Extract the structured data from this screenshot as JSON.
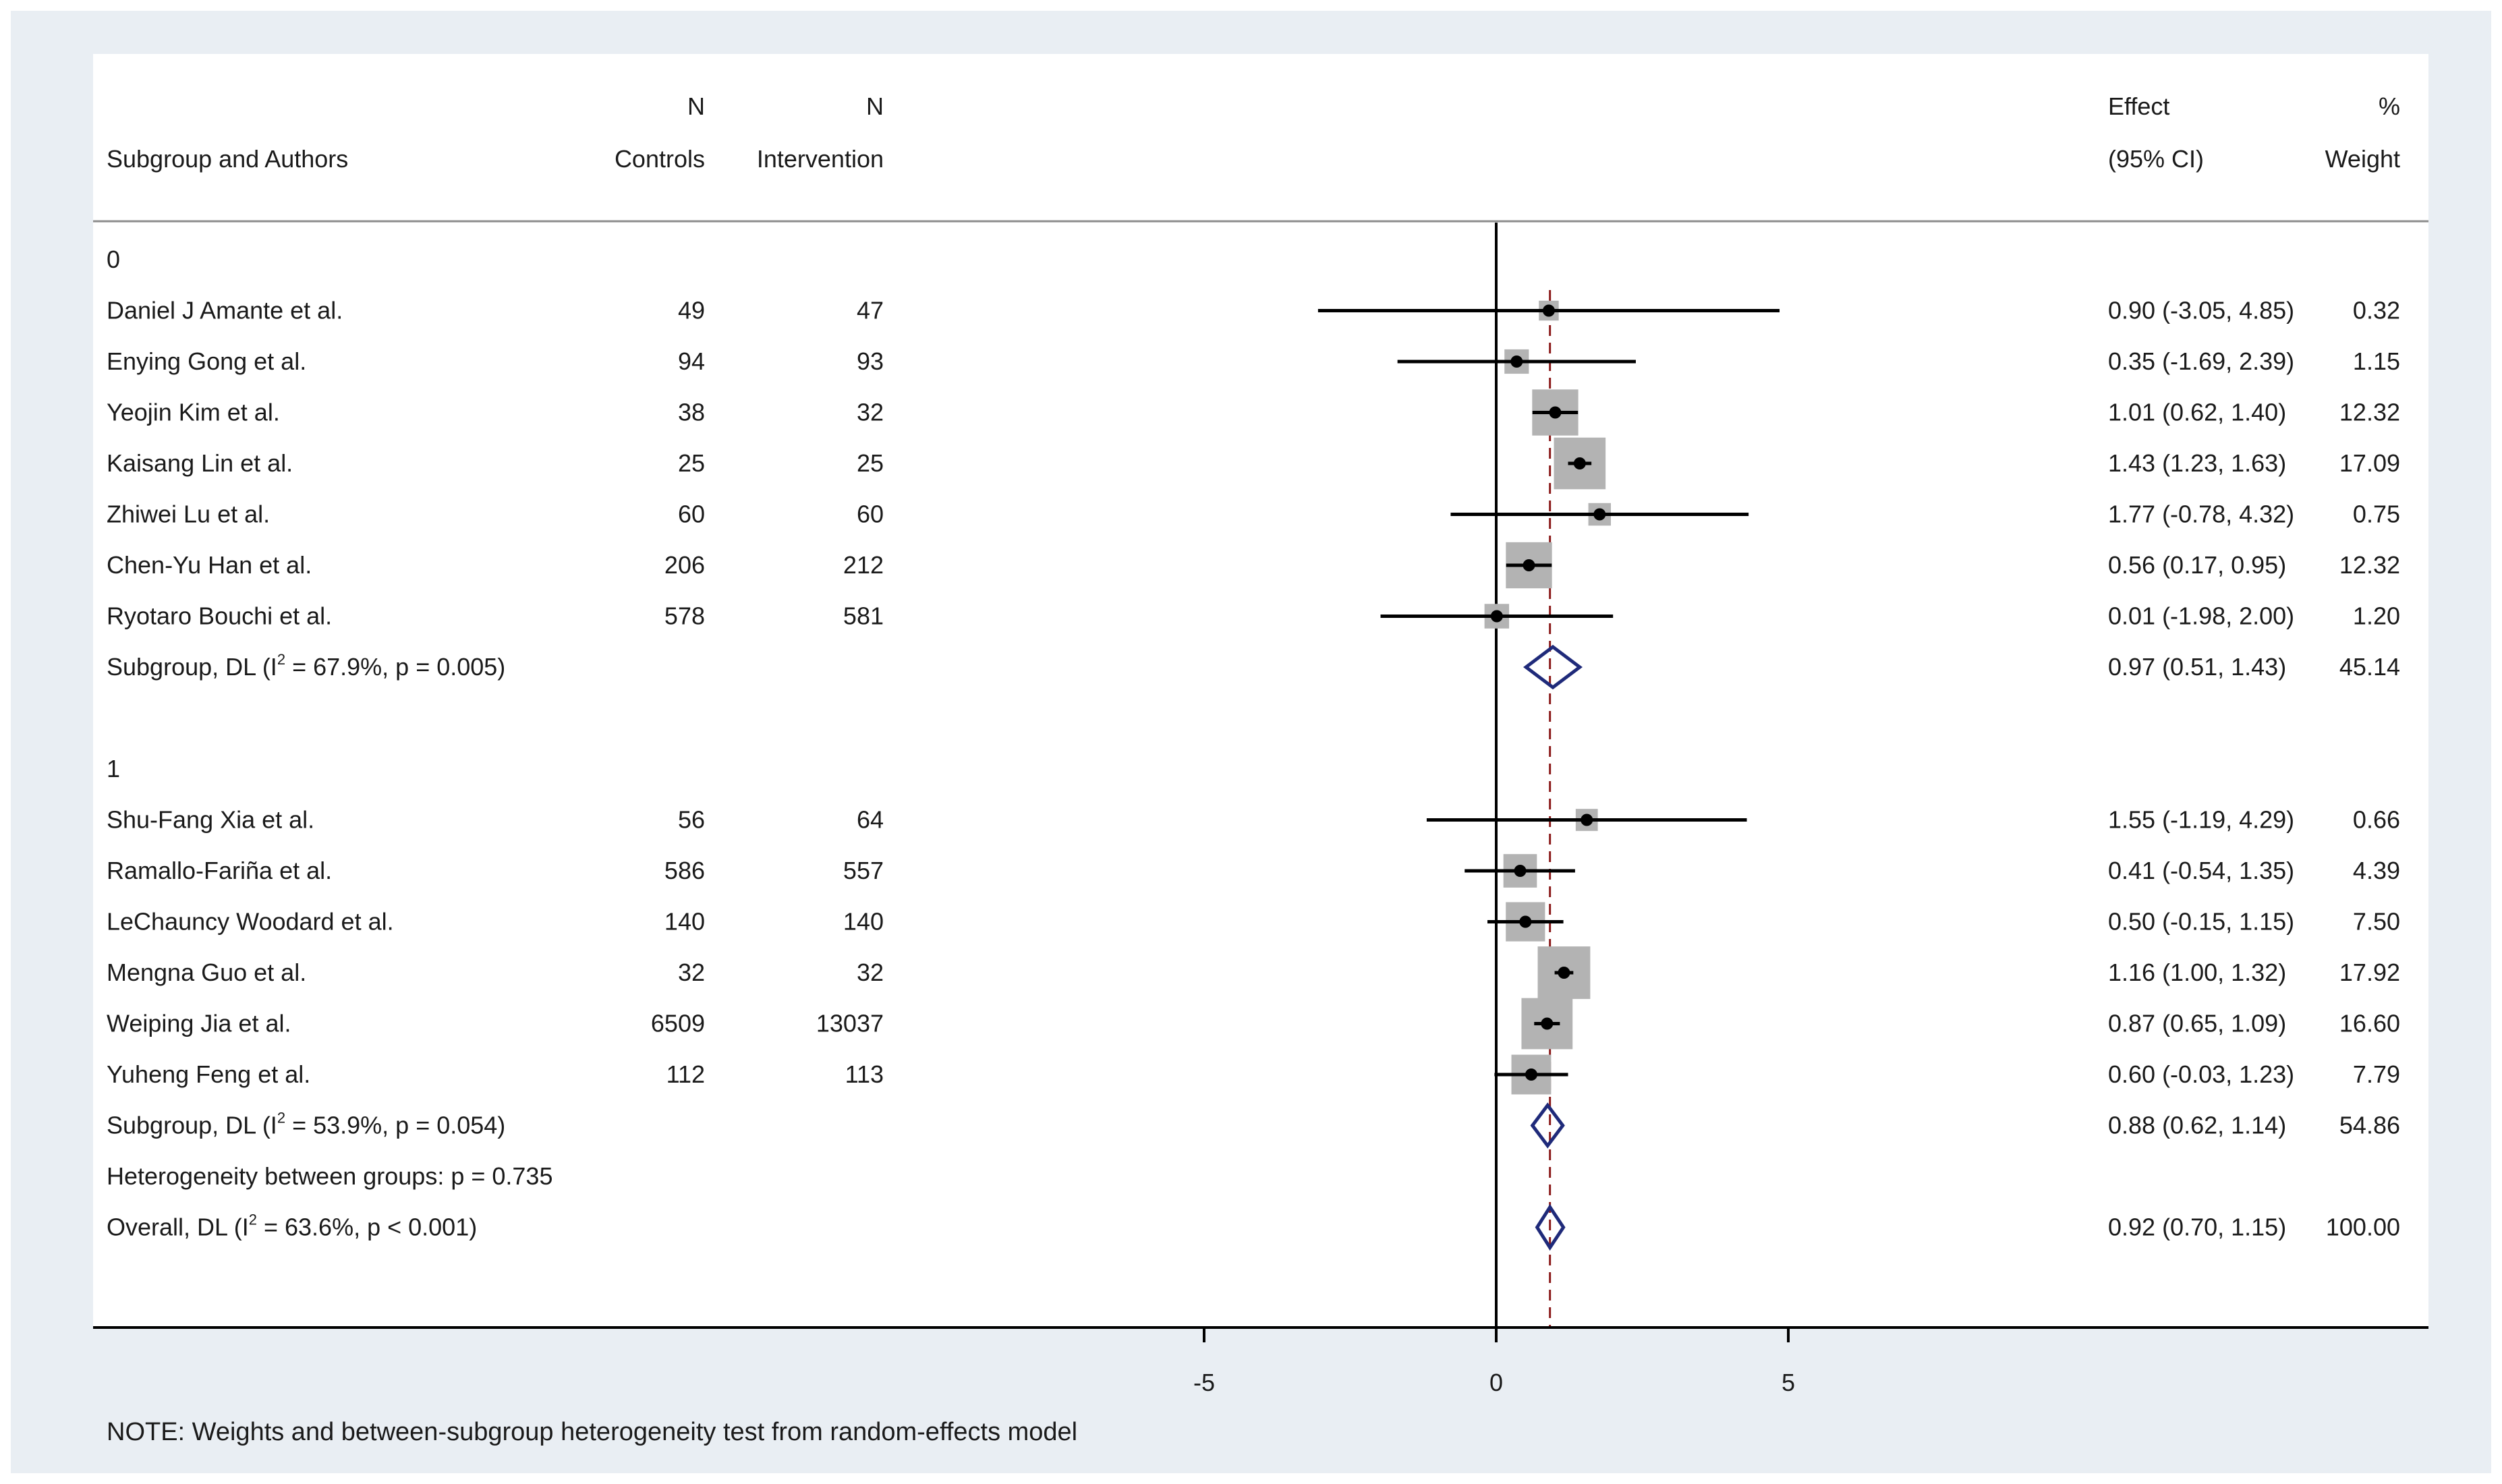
{
  "header": {
    "col_n": "N",
    "col_controls": "Controls",
    "col_intervention": "Intervention",
    "col_subgroup_authors": "Subgroup and Authors",
    "col_effect": "Effect",
    "col_ci": "(95% CI)",
    "col_pct": "%",
    "col_weight": "Weight"
  },
  "colors": {
    "panel": "#ffffff",
    "frame": "#e9eef3",
    "box": "#b3b3b3",
    "diamond": "#1f2a7a",
    "ref_line": "#8b1a1a",
    "ink": "#000000"
  },
  "chart_data": {
    "type": "forest",
    "xlim": [
      -8.8,
      7.8
    ],
    "xticks": [
      -5,
      0,
      5
    ],
    "xtick_labels": [
      "-5",
      "0",
      "5"
    ],
    "overall_effect": 0.92,
    "groups": [
      {
        "label": "0",
        "studies": [
          {
            "author": "Daniel J Amante et al.",
            "controls": "49",
            "intervention": "47",
            "est": 0.9,
            "lo": -3.05,
            "hi": 4.85,
            "ci_text": "0.90 (-3.05, 4.85)",
            "weight": 0.32,
            "weight_text": "0.32"
          },
          {
            "author": "Enying Gong et al.",
            "controls": "94",
            "intervention": "93",
            "est": 0.35,
            "lo": -1.69,
            "hi": 2.39,
            "ci_text": "0.35 (-1.69, 2.39)",
            "weight": 1.15,
            "weight_text": "1.15"
          },
          {
            "author": "Yeojin Kim et al.",
            "controls": "38",
            "intervention": "32",
            "est": 1.01,
            "lo": 0.62,
            "hi": 1.4,
            "ci_text": "1.01 (0.62, 1.40)",
            "weight": 12.32,
            "weight_text": "12.32"
          },
          {
            "author": "Kaisang Lin et al.",
            "controls": "25",
            "intervention": "25",
            "est": 1.43,
            "lo": 1.23,
            "hi": 1.63,
            "ci_text": "1.43 (1.23, 1.63)",
            "weight": 17.09,
            "weight_text": "17.09"
          },
          {
            "author": "Zhiwei Lu et al.",
            "controls": "60",
            "intervention": "60",
            "est": 1.77,
            "lo": -0.78,
            "hi": 4.32,
            "ci_text": "1.77 (-0.78, 4.32)",
            "weight": 0.75,
            "weight_text": "0.75"
          },
          {
            "author": "Chen-Yu Han et al.",
            "controls": "206",
            "intervention": "212",
            "est": 0.56,
            "lo": 0.17,
            "hi": 0.95,
            "ci_text": "0.56 (0.17, 0.95)",
            "weight": 12.32,
            "weight_text": "12.32"
          },
          {
            "author": "Ryotaro Bouchi et al.",
            "controls": "578",
            "intervention": "581",
            "est": 0.01,
            "lo": -1.98,
            "hi": 2.0,
            "ci_text": "0.01 (-1.98, 2.00)",
            "weight": 1.2,
            "weight_text": "1.20"
          }
        ],
        "subgroup": {
          "label_pre": "Subgroup, DL (I",
          "label_sup": "2",
          "label_post": " = 67.9%, p = 0.005)",
          "est": 0.97,
          "lo": 0.51,
          "hi": 1.43,
          "ci_text": "0.97 (0.51, 1.43)",
          "weight_text": "45.14"
        }
      },
      {
        "label": "1",
        "studies": [
          {
            "author": "Shu-Fang Xia et al.",
            "controls": "56",
            "intervention": "64",
            "est": 1.55,
            "lo": -1.19,
            "hi": 4.29,
            "ci_text": "1.55 (-1.19, 4.29)",
            "weight": 0.66,
            "weight_text": "0.66"
          },
          {
            "author": "Ramallo-Fariña et al.",
            "controls": "586",
            "intervention": "557",
            "est": 0.41,
            "lo": -0.54,
            "hi": 1.35,
            "ci_text": "0.41 (-0.54, 1.35)",
            "weight": 4.39,
            "weight_text": "4.39"
          },
          {
            "author": "LeChauncy Woodard et al.",
            "controls": "140",
            "intervention": "140",
            "est": 0.5,
            "lo": -0.15,
            "hi": 1.15,
            "ci_text": "0.50 (-0.15, 1.15)",
            "weight": 7.5,
            "weight_text": "7.50"
          },
          {
            "author": "Mengna Guo et al.",
            "controls": "32",
            "intervention": "32",
            "est": 1.16,
            "lo": 1.0,
            "hi": 1.32,
            "ci_text": "1.16 (1.00, 1.32)",
            "weight": 17.92,
            "weight_text": "17.92"
          },
          {
            "author": "Weiping Jia et al.",
            "controls": "6509",
            "intervention": "13037",
            "est": 0.87,
            "lo": 0.65,
            "hi": 1.09,
            "ci_text": "0.87 (0.65, 1.09)",
            "weight": 16.6,
            "weight_text": "16.60"
          },
          {
            "author": "Yuheng Feng et al.",
            "controls": "112",
            "intervention": "113",
            "est": 0.6,
            "lo": -0.03,
            "hi": 1.23,
            "ci_text": "0.60 (-0.03, 1.23)",
            "weight": 7.79,
            "weight_text": "7.79"
          }
        ],
        "subgroup": {
          "label_pre": "Subgroup, DL (I",
          "label_sup": "2",
          "label_post": " = 53.9%, p = 0.054)",
          "est": 0.88,
          "lo": 0.62,
          "hi": 1.14,
          "ci_text": "0.88 (0.62, 1.14)",
          "weight_text": "54.86"
        }
      }
    ],
    "heterogeneity_text": "Heterogeneity between groups: p = 0.735",
    "overall": {
      "label_pre": "Overall, DL (I",
      "label_sup": "2",
      "label_post": " = 63.6%, p < 0.001)",
      "est": 0.92,
      "lo": 0.7,
      "hi": 1.15,
      "ci_text": "0.92 (0.70, 1.15)",
      "weight_text": "100.00"
    },
    "note": "NOTE: Weights and between-subgroup heterogeneity test from random-effects model"
  }
}
